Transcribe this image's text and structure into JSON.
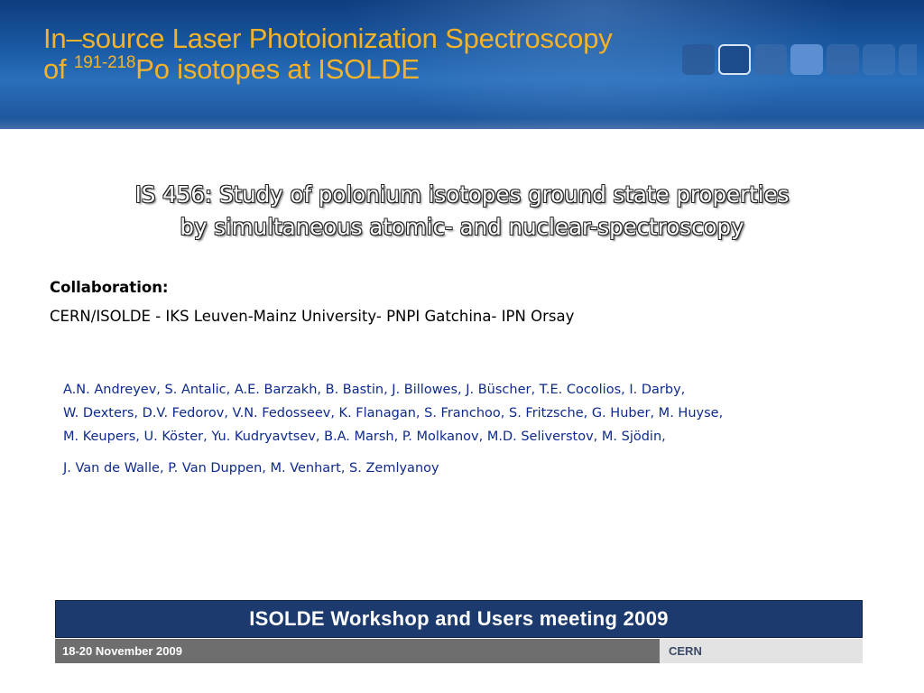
{
  "header": {
    "title_line1": "In–source Laser Photoionization Spectroscopy",
    "title_line2_prefix": "of ",
    "title_line2_mass_range": "191-218",
    "title_line2_suffix": "Po isotopes at ISOLDE",
    "title_color": "#f4b22a",
    "banner_color": "#1a5aa3"
  },
  "subtitle": {
    "line1": "IS 456: Study of polonium isotopes ground state properties",
    "line2": "by simultaneous atomic- and nuclear-spectroscopy"
  },
  "collaboration": {
    "heading": "Collaboration:",
    "institutions": "CERN/ISOLDE - IKS Leuven-Mainz University- PNPI Gatchina- IPN Orsay"
  },
  "authors": {
    "color": "#0e2a8c",
    "lines": [
      "A.N. Andreyev, S. Antalic, A.E. Barzakh, B. Bastin, J. Billowes, J. Büscher, T.E. Cocolios, I. Darby,",
      "W. Dexters, D.V. Fedorov, V.N. Fedosseev, K. Flanagan, S. Franchoo, S. Fritzsche, G. Huber, M. Huyse,",
      "M. Keupers, U. Köster, Yu. Kudryavtsev, B.A. Marsh,  P. Molkanov,  M.D. Seliverstov, M. Sjödin,",
      "J. Van de Walle, P. Van Duppen, M. Venhart, S. Zemlyanoy"
    ]
  },
  "footer": {
    "event": "ISOLDE Workshop and Users meeting 2009",
    "date": "18-20 November 2009",
    "organization": "CERN",
    "bar_color": "#1c3a6e"
  }
}
